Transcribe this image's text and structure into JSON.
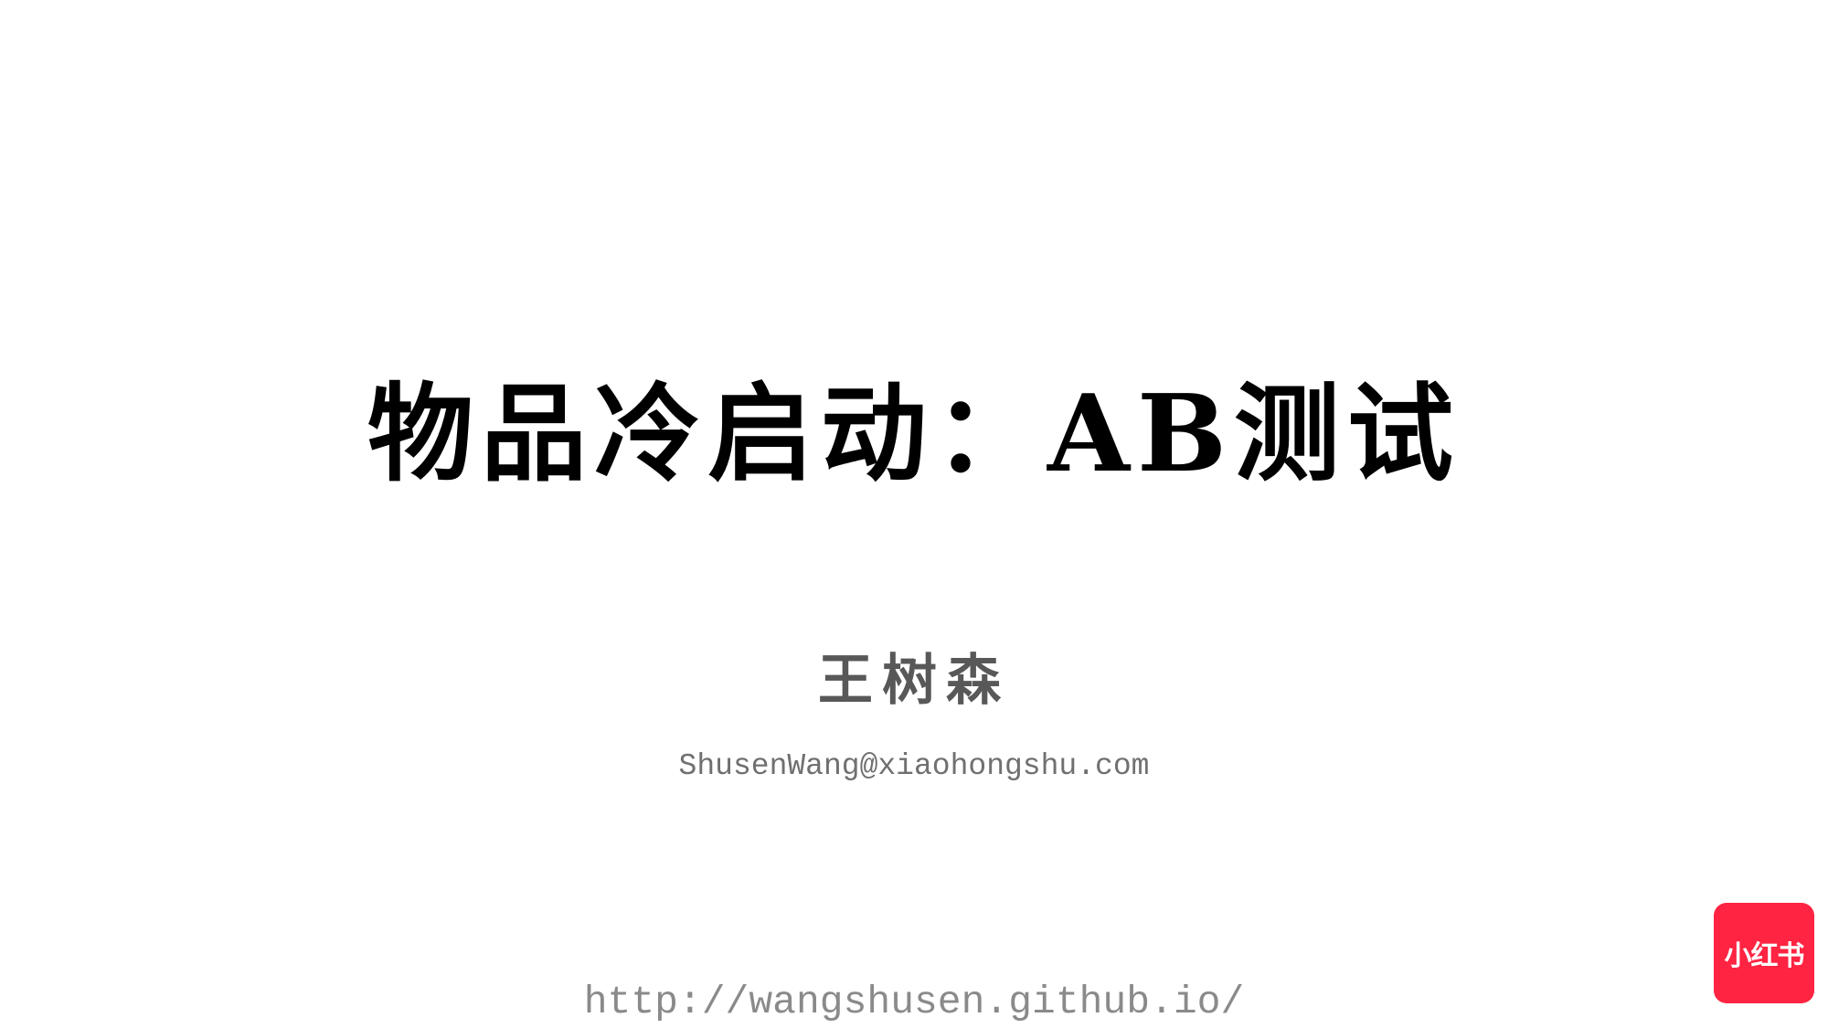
{
  "slide": {
    "title": "物品冷启动：AB测试",
    "author": "王树森",
    "email": "ShusenWang@xiaohongshu.com",
    "url": "http://wangshusen.github.io/",
    "logo": {
      "text": "小红书",
      "color": "#ff2442"
    }
  }
}
